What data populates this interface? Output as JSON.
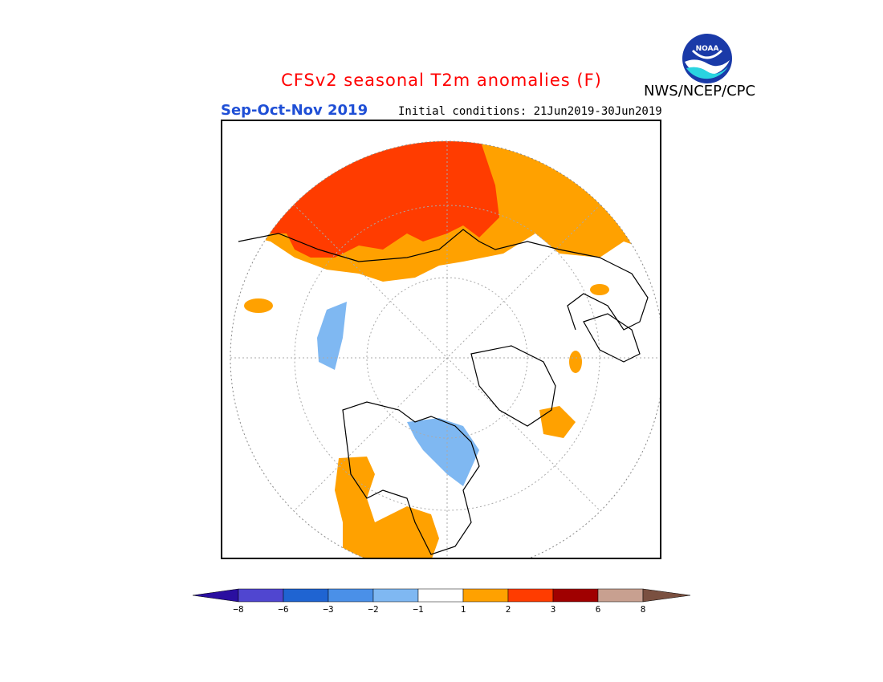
{
  "header": {
    "title": "CFSv2 seasonal T2m anomalies (F)",
    "season": "Sep-Oct-Nov 2019",
    "initial_conditions": "Initial conditions: 21Jun2019-30Jun2019",
    "agency": "NWS/NCEP/CPC",
    "logo_text": "NOAA"
  },
  "colors": {
    "title": "#ff0000",
    "season": "#1f4fd6",
    "land_outline": "#000000",
    "warm_1_2": "#ffa100",
    "warm_2_3": "#ff3c00",
    "warm_3_6": "#a00000",
    "cold_m1_m2": "#7fb8f2",
    "cold_m2_m3": "#4a90e8"
  },
  "legend": {
    "ticks": [
      "−8",
      "−6",
      "−3",
      "−2",
      "−1",
      "1",
      "2",
      "3",
      "6",
      "8"
    ],
    "bins": [
      {
        "range": "< -8",
        "color": "#2a0fa0"
      },
      {
        "range": "-8 to -6",
        "color": "#5046d0"
      },
      {
        "range": "-6 to -3",
        "color": "#1f64d2"
      },
      {
        "range": "-3 to -2",
        "color": "#4a90e8"
      },
      {
        "range": "-2 to -1",
        "color": "#7fb8f2"
      },
      {
        "range": "-1 to 1",
        "color": "#ffffff"
      },
      {
        "range": "1 to 2",
        "color": "#ffa100"
      },
      {
        "range": "2 to 3",
        "color": "#ff3c00"
      },
      {
        "range": "3 to 6",
        "color": "#a00000"
      },
      {
        "range": "6 to 8",
        "color": "#c8a090"
      },
      {
        "range": "> 8",
        "color": "#7a5040"
      }
    ]
  }
}
